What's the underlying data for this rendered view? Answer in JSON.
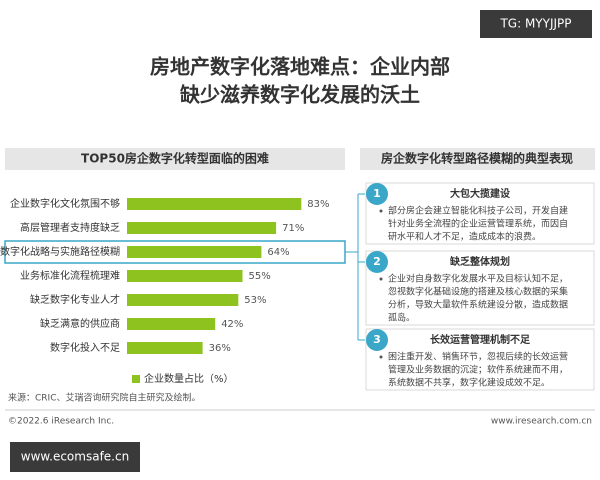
{
  "header": {
    "title_lines": [
      "房地产数字化落地难点：企业内部",
      "缺少滋养数字化发展的沃土"
    ]
  },
  "chart_data": {
    "type": "hbar",
    "title": "TOP50房企数字化转型面临的困难",
    "categories": [
      "企业数字化文化氛围不够",
      "高层管理者支持度缺乏",
      "数字化战略与实施路径模糊",
      "业务标准化流程梳理难",
      "缺乏数字化专业人才",
      "缺乏满意的供应商",
      "数字化投入不足"
    ],
    "series": [
      {
        "name": "企业数量占比（%）",
        "color": "#8dc21f",
        "values": [
          83,
          71,
          64,
          55,
          53,
          42,
          36
        ],
        "value_labels": [
          "83%",
          "71%",
          "64%",
          "55%",
          "53%",
          "42%",
          "36%"
        ]
      }
    ]
  },
  "panel": {
    "title": "房企数字化转型路径模糊的典型表现",
    "items": [
      {
        "number": "1",
        "title": "大包大揽建设",
        "lines": [
          "部分房企会建立智能化科技子公司，开发自建",
          "针对业务全流程的企业运营管理系统，而因自",
          "研水平和人才不足，造成成本的浪费。"
        ]
      },
      {
        "number": "2",
        "title": "缺乏整体规划",
        "lines": [
          "企业对自身数字化发展水平及目标认知不足，",
          "忽视数字化基础设施的搭建及核心数据的采集",
          "分析，导致大量软件系统建设分散，造成数据",
          "孤岛。"
        ]
      },
      {
        "number": "3",
        "title": "长效运营管理机制不足",
        "lines": [
          "困注重开发、销售环节，忽视后续的长效运营",
          "管理及业务数据的沉淀；软件系统建而不用，",
          "系统数据不共享，数字化建设成效不足。"
        ]
      }
    ]
  },
  "footer": {
    "source": "来源：CRIC、艾瑞咨询研究院自主研究及绘制。",
    "copyright": "©2022.6 iResearch Inc.",
    "website": "www.iresearch.com.cn"
  },
  "watermarks": {
    "top": "TG: MYYJJPP",
    "bottom": "www.ecomsafe.cn"
  }
}
